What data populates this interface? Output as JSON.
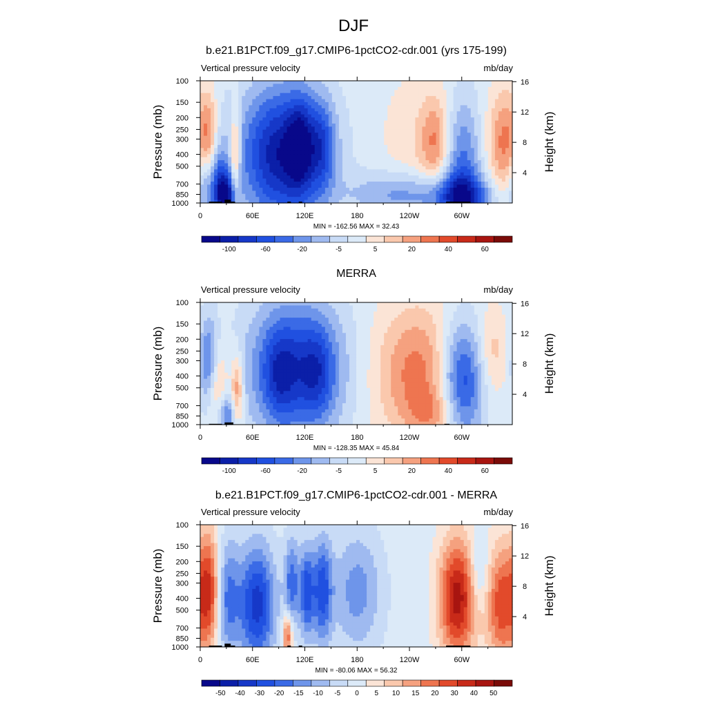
{
  "page": {
    "title": "DJF"
  },
  "colormaps": {
    "main": [
      "#08088a",
      "#0b1fa8",
      "#1638c8",
      "#2050e0",
      "#3a6ae6",
      "#6e95ea",
      "#9fbaf0",
      "#c8dbf6",
      "#dceaf8",
      "#fbe4d6",
      "#fac8ad",
      "#f5a17f",
      "#ee7550",
      "#e24a2b",
      "#c82a19",
      "#a81510",
      "#7a0b08"
    ],
    "diff": [
      "#08088a",
      "#0b1fa8",
      "#1638c8",
      "#2050e0",
      "#3a6ae6",
      "#6e95ea",
      "#9fbaf0",
      "#c8dbf6",
      "#dceaf8",
      "#fbe4d6",
      "#fac8ad",
      "#f5a17f",
      "#ee7550",
      "#e24a2b",
      "#c82a19",
      "#a81510",
      "#7a0b08"
    ]
  },
  "chart_data": [
    {
      "type": "heatmap",
      "id": "model",
      "title": "b.e21.B1PCT.f09_g17.CMIP6-1pctCO2-cdr.001 (yrs 175-199)",
      "left_label": "Vertical pressure velocity",
      "right_label": "mb/day",
      "ylabel": "Pressure (mb)",
      "y2label": "Height (km)",
      "x_ticks": [
        "0",
        "60E",
        "120E",
        "180",
        "120W",
        "60W"
      ],
      "x_tick_values": [
        0,
        60,
        120,
        180,
        240,
        300
      ],
      "xlim": [
        0,
        358
      ],
      "y_ticks": [
        "100",
        "150",
        "200",
        "250",
        "300",
        "400",
        "500",
        "700",
        "850",
        "1000"
      ],
      "y_tick_values": [
        100,
        150,
        200,
        250,
        300,
        400,
        500,
        700,
        850,
        1000
      ],
      "ylim": [
        1000,
        100
      ],
      "y2_ticks": [
        "4",
        "8",
        "12",
        "16"
      ],
      "y2_tick_values": [
        4,
        8,
        12,
        16
      ],
      "stats": "MIN = -162.56  MAX =  32.43",
      "min": -162.56,
      "max": 32.43,
      "colorbar_labels": [
        "-100",
        "-60",
        "-20",
        "-5",
        "5",
        "20",
        "40",
        "60"
      ],
      "colormap": "main",
      "features": [
        {
          "lon": 95,
          "p": 400,
          "slon": 35,
          "sp": 0.9,
          "amp": -7.5
        },
        {
          "lon": 115,
          "p": 330,
          "slon": 10,
          "sp": 0.6,
          "amp": -3.5
        },
        {
          "lon": 140,
          "p": 350,
          "slon": 10,
          "sp": 0.6,
          "amp": -3
        },
        {
          "lon": 250,
          "p": 300,
          "slon": 30,
          "sp": 0.9,
          "amp": 1.2
        },
        {
          "lon": 270,
          "p": 320,
          "slon": 12,
          "sp": 0.6,
          "amp": 3
        },
        {
          "lon": 350,
          "p": 320,
          "slon": 14,
          "sp": 0.7,
          "amp": 4
        },
        {
          "lon": 300,
          "p": 500,
          "slon": 15,
          "sp": 0.9,
          "amp": -4
        },
        {
          "lon": 300,
          "p": 900,
          "slon": 25,
          "sp": 0.3,
          "amp": -5
        },
        {
          "lon": 230,
          "p": 850,
          "slon": 40,
          "sp": 0.3,
          "amp": -3
        },
        {
          "lon": 10,
          "p": 300,
          "slon": 6,
          "sp": 0.6,
          "amp": 3
        },
        {
          "lon": 22,
          "p": 700,
          "slon": 8,
          "sp": 0.5,
          "amp": -4
        },
        {
          "lon": 40,
          "p": 400,
          "slon": 4,
          "sp": 0.6,
          "amp": 4
        },
        {
          "lon": 30,
          "p": 900,
          "slon": 8,
          "sp": 0.3,
          "amp": -6
        },
        {
          "lon": 5,
          "p": 700,
          "slon": 8,
          "sp": 0.5,
          "amp": -3
        }
      ],
      "topography": [
        [
          10,
          25,
          975
        ],
        [
          28,
          35,
          940
        ],
        [
          35,
          40,
          975
        ],
        [
          100,
          104,
          975
        ],
        [
          113,
          117,
          975
        ],
        [
          282,
          310,
          975
        ]
      ]
    },
    {
      "type": "heatmap",
      "id": "obs",
      "title": "MERRA",
      "left_label": "Vertical pressure velocity",
      "right_label": "mb/day",
      "ylabel": "Pressure (mb)",
      "y2label": "Height (km)",
      "x_ticks": [
        "0",
        "60E",
        "120E",
        "180",
        "120W",
        "60W"
      ],
      "x_tick_values": [
        0,
        60,
        120,
        180,
        240,
        300
      ],
      "xlim": [
        0,
        358
      ],
      "y_ticks": [
        "100",
        "150",
        "200",
        "250",
        "300",
        "400",
        "500",
        "700",
        "850",
        "1000"
      ],
      "y_tick_values": [
        100,
        150,
        200,
        250,
        300,
        400,
        500,
        700,
        850,
        1000
      ],
      "ylim": [
        1000,
        100
      ],
      "y2_ticks": [
        "4",
        "8",
        "12",
        "16"
      ],
      "y2_tick_values": [
        4,
        8,
        12,
        16
      ],
      "stats": "MIN = -128.35  MAX =  45.84",
      "min": -128.35,
      "max": 45.84,
      "colorbar_labels": [
        "-100",
        "-60",
        "-20",
        "-5",
        "5",
        "20",
        "40",
        "60"
      ],
      "colormap": "main",
      "features": [
        {
          "lon": 110,
          "p": 350,
          "slon": 38,
          "sp": 0.9,
          "amp": -6
        },
        {
          "lon": 90,
          "p": 400,
          "slon": 12,
          "sp": 0.6,
          "amp": -2
        },
        {
          "lon": 135,
          "p": 380,
          "slon": 12,
          "sp": 0.6,
          "amp": -2
        },
        {
          "lon": 250,
          "p": 380,
          "slon": 35,
          "sp": 0.9,
          "amp": 4
        },
        {
          "lon": 335,
          "p": 250,
          "slon": 12,
          "sp": 0.6,
          "amp": 2
        },
        {
          "lon": 300,
          "p": 450,
          "slon": 18,
          "sp": 0.8,
          "amp": -6
        },
        {
          "lon": 20,
          "p": 500,
          "slon": 8,
          "sp": 0.6,
          "amp": 3
        },
        {
          "lon": 10,
          "p": 300,
          "slon": 8,
          "sp": 0.6,
          "amp": -4
        },
        {
          "lon": 42,
          "p": 550,
          "slon": 5,
          "sp": 0.5,
          "amp": 4
        },
        {
          "lon": 30,
          "p": 850,
          "slon": 8,
          "sp": 0.3,
          "amp": -4
        },
        {
          "lon": 270,
          "p": 800,
          "slon": 20,
          "sp": 0.3,
          "amp": 2
        }
      ],
      "topography": [
        [
          10,
          25,
          985
        ],
        [
          28,
          38,
          960
        ],
        [
          280,
          286,
          985
        ]
      ]
    },
    {
      "type": "heatmap",
      "id": "diff",
      "title": "b.e21.B1PCT.f09_g17.CMIP6-1pctCO2-cdr.001 - MERRA",
      "left_label": "Vertical pressure velocity",
      "right_label": "mb/day",
      "ylabel": "Pressure (mb)",
      "y2label": "Height (km)",
      "x_ticks": [
        "0",
        "60E",
        "120E",
        "180",
        "120W",
        "60W"
      ],
      "x_tick_values": [
        0,
        60,
        120,
        180,
        240,
        300
      ],
      "xlim": [
        0,
        358
      ],
      "y_ticks": [
        "100",
        "150",
        "200",
        "250",
        "300",
        "400",
        "500",
        "700",
        "850",
        "1000"
      ],
      "y_tick_values": [
        100,
        150,
        200,
        250,
        300,
        400,
        500,
        700,
        850,
        1000
      ],
      "ylim": [
        1000,
        100
      ],
      "y2_ticks": [
        "4",
        "8",
        "12",
        "16"
      ],
      "y2_tick_values": [
        4,
        8,
        12,
        16
      ],
      "stats": "MIN = -80.06  MAX =  56.32",
      "min": -80.06,
      "max": 56.32,
      "colorbar_labels": [
        "-50",
        "-40",
        "-30",
        "-20",
        "-15",
        "-10",
        "-5",
        "0",
        "5",
        "10",
        "15",
        "20",
        "30",
        "40",
        "50"
      ],
      "colormap": "diff",
      "features": [
        {
          "lon": 10,
          "p": 350,
          "slon": 10,
          "sp": 0.8,
          "amp": 6
        },
        {
          "lon": 30,
          "p": 400,
          "slon": 10,
          "sp": 0.8,
          "amp": -4
        },
        {
          "lon": 65,
          "p": 450,
          "slon": 15,
          "sp": 0.8,
          "amp": -6
        },
        {
          "lon": 105,
          "p": 300,
          "slon": 6,
          "sp": 0.6,
          "amp": -4
        },
        {
          "lon": 122,
          "p": 350,
          "slon": 6,
          "sp": 0.6,
          "amp": -5
        },
        {
          "lon": 140,
          "p": 350,
          "slon": 8,
          "sp": 0.7,
          "amp": -5
        },
        {
          "lon": 180,
          "p": 350,
          "slon": 20,
          "sp": 0.8,
          "amp": -3
        },
        {
          "lon": 295,
          "p": 400,
          "slon": 15,
          "sp": 0.8,
          "amp": 7
        },
        {
          "lon": 345,
          "p": 450,
          "slon": 12,
          "sp": 0.8,
          "amp": 5
        },
        {
          "lon": 320,
          "p": 250,
          "slon": 8,
          "sp": 0.5,
          "amp": -2
        },
        {
          "lon": 100,
          "p": 800,
          "slon": 4,
          "sp": 0.3,
          "amp": 5
        }
      ],
      "topography": [
        [
          10,
          25,
          975
        ],
        [
          28,
          35,
          940
        ],
        [
          35,
          40,
          975
        ],
        [
          100,
          104,
          975
        ],
        [
          113,
          117,
          975
        ],
        [
          282,
          310,
          975
        ]
      ]
    }
  ]
}
